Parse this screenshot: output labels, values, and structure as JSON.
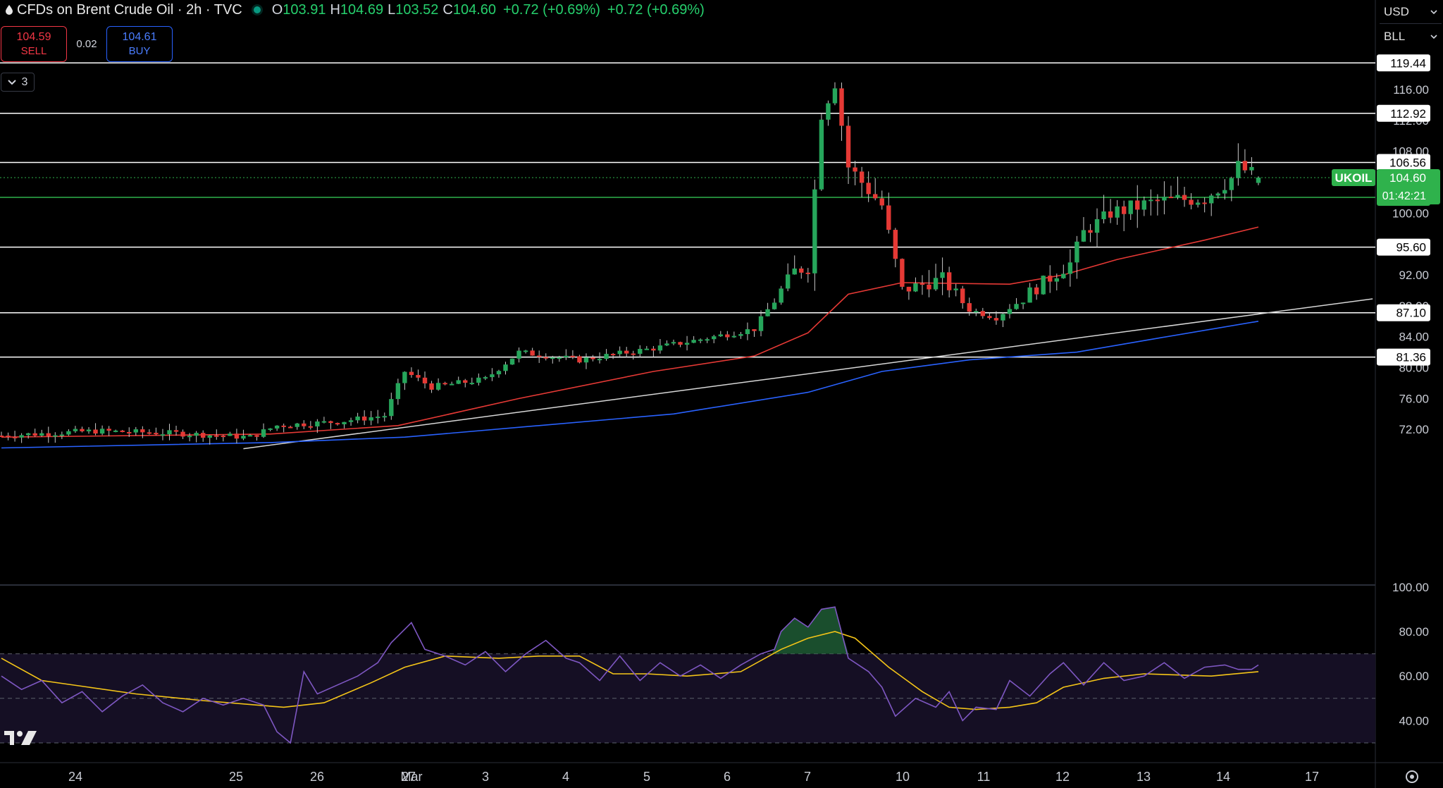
{
  "header": {
    "symbol_title": "CFDs on Brent Crude Oil · 2h · TVC",
    "open_label": "O",
    "open": "103.91",
    "high_label": "H",
    "high": "104.69",
    "low_label": "L",
    "low": "103.52",
    "close_label": "C",
    "close": "104.60",
    "change": "+0.72 (+0.69%)",
    "change_repeat": "+0.72 (+0.69%)"
  },
  "trade": {
    "sell_price": "104.59",
    "sell_label": "SELL",
    "spread": "0.02",
    "buy_price": "104.61",
    "buy_label": "BUY"
  },
  "collapse_count": "3",
  "scale_controls": {
    "currency": "USD",
    "unit": "BLL"
  },
  "colors": {
    "up": "#26a65b",
    "down": "#e53935",
    "ma_short": "#e53935",
    "ma_long": "#2962ff",
    "rsi": "#7e57c2",
    "rsi_ma": "#f5c518",
    "hline": "#ffffff",
    "last_price": "#2fb24c"
  },
  "chart_data": [
    {
      "type": "candlestick",
      "title": "CFDs on Brent Crude Oil · 2h · TVC",
      "x_ticks": [
        "24",
        "25",
        "26",
        "27",
        "Mar",
        "3",
        "4",
        "5",
        "6",
        "7",
        "10",
        "11",
        "12",
        "13",
        "14",
        "17"
      ],
      "y_ticks": [
        "72.00",
        "76.00",
        "80.00",
        "84.00",
        "88.00",
        "92.00",
        "96.00",
        "100.00",
        "104.00",
        "108.00",
        "112.00",
        "116.00"
      ],
      "ylim": [
        69.5,
        121.5
      ],
      "horizontal_levels": [
        119.44,
        112.92,
        106.56,
        102.04,
        95.6,
        87.1,
        81.36
      ],
      "level_labels": [
        "119.44",
        "112.92",
        "106.56",
        "102.04",
        "95.60",
        "87.10",
        "81.36"
      ],
      "last_price": {
        "symbol": "UKOIL",
        "price": "104.60",
        "countdown": "01:42:21"
      },
      "waypoints": [
        [
          0,
          71.2
        ],
        [
          14,
          71.8
        ],
        [
          26,
          71.5
        ],
        [
          37,
          71.0
        ],
        [
          41,
          72.5
        ],
        [
          50,
          73.0
        ],
        [
          57,
          73.8
        ],
        [
          60,
          79.5
        ],
        [
          64,
          77.5
        ],
        [
          72,
          78.5
        ],
        [
          77,
          82.0
        ],
        [
          86,
          81.0
        ],
        [
          97,
          82.5
        ],
        [
          112,
          85.0
        ],
        [
          118,
          92.5
        ],
        [
          120,
          93.0
        ],
        [
          122,
          113.0
        ],
        [
          124,
          117.0
        ],
        [
          126,
          106.0
        ],
        [
          131,
          101.0
        ],
        [
          134,
          90.0
        ],
        [
          140,
          91.5
        ],
        [
          144,
          87.5
        ],
        [
          148,
          86.5
        ],
        [
          155,
          91.0
        ],
        [
          159,
          93.5
        ],
        [
          161,
          97.5
        ],
        [
          165,
          100.0
        ],
        [
          172,
          101.5
        ],
        [
          179,
          102.0
        ],
        [
          183,
          104.5
        ],
        [
          184,
          106.0
        ],
        [
          187,
          104.6
        ]
      ],
      "ma_short": [
        [
          0,
          71.0
        ],
        [
          40,
          71.4
        ],
        [
          59,
          72.5
        ],
        [
          77,
          76.0
        ],
        [
          97,
          79.5
        ],
        [
          112,
          81.5
        ],
        [
          120,
          84.5
        ],
        [
          126,
          89.5
        ],
        [
          134,
          91.0
        ],
        [
          150,
          90.8
        ],
        [
          158,
          92.0
        ],
        [
          166,
          94.0
        ],
        [
          179,
          96.5
        ],
        [
          187,
          98.2
        ]
      ],
      "ma_long": [
        [
          0,
          69.6
        ],
        [
          40,
          70.3
        ],
        [
          60,
          71.0
        ],
        [
          80,
          72.5
        ],
        [
          100,
          74.0
        ],
        [
          120,
          76.8
        ],
        [
          131,
          79.5
        ],
        [
          144,
          81.0
        ],
        [
          160,
          82.0
        ],
        [
          172,
          83.8
        ],
        [
          187,
          86.0
        ]
      ],
      "trendline": [
        [
          36,
          69.5
        ],
        [
          204,
          88.9
        ]
      ]
    },
    {
      "type": "line",
      "title": "RSI",
      "y_ticks": [
        "40.00",
        "60.00",
        "80.00",
        "100.00"
      ],
      "ylim": [
        25,
        105
      ],
      "band": [
        30,
        70
      ],
      "midline": 50,
      "rsi": [
        [
          0,
          60
        ],
        [
          3,
          54
        ],
        [
          6,
          58
        ],
        [
          9,
          48
        ],
        [
          12,
          53
        ],
        [
          15,
          44
        ],
        [
          18,
          51
        ],
        [
          21,
          56
        ],
        [
          24,
          48
        ],
        [
          27,
          44
        ],
        [
          30,
          50
        ],
        [
          33,
          47
        ],
        [
          36,
          50
        ],
        [
          39,
          47
        ],
        [
          41,
          35
        ],
        [
          43,
          30
        ],
        [
          45,
          62
        ],
        [
          47,
          52
        ],
        [
          50,
          56
        ],
        [
          53,
          60
        ],
        [
          56,
          66
        ],
        [
          58,
          75
        ],
        [
          61,
          84
        ],
        [
          63,
          72
        ],
        [
          66,
          69
        ],
        [
          69,
          65
        ],
        [
          72,
          71
        ],
        [
          75,
          62
        ],
        [
          78,
          70
        ],
        [
          81,
          76
        ],
        [
          84,
          68
        ],
        [
          86,
          66
        ],
        [
          89,
          58
        ],
        [
          92,
          69
        ],
        [
          95,
          58
        ],
        [
          98,
          66
        ],
        [
          101,
          60
        ],
        [
          104,
          65
        ],
        [
          107,
          59
        ],
        [
          110,
          65
        ],
        [
          113,
          70
        ],
        [
          115,
          72
        ],
        [
          116,
          80
        ],
        [
          118,
          86
        ],
        [
          120,
          82
        ],
        [
          122,
          90
        ],
        [
          124,
          91
        ],
        [
          126,
          68
        ],
        [
          129,
          62
        ],
        [
          131,
          55
        ],
        [
          133,
          42
        ],
        [
          136,
          50
        ],
        [
          139,
          46
        ],
        [
          141,
          53
        ],
        [
          143,
          40
        ],
        [
          145,
          46
        ],
        [
          148,
          45
        ],
        [
          150,
          58
        ],
        [
          153,
          51
        ],
        [
          156,
          61
        ],
        [
          158,
          66
        ],
        [
          161,
          56
        ],
        [
          164,
          66
        ],
        [
          167,
          58
        ],
        [
          170,
          60
        ],
        [
          173,
          66
        ],
        [
          176,
          59
        ],
        [
          179,
          64
        ],
        [
          182,
          65
        ],
        [
          184,
          63
        ],
        [
          186,
          63
        ],
        [
          187,
          65
        ]
      ],
      "rsi_ma": [
        [
          0,
          68
        ],
        [
          6,
          58
        ],
        [
          13,
          55
        ],
        [
          20,
          52
        ],
        [
          30,
          49
        ],
        [
          38,
          47
        ],
        [
          42,
          46
        ],
        [
          48,
          48
        ],
        [
          55,
          57
        ],
        [
          60,
          64
        ],
        [
          66,
          69
        ],
        [
          74,
          68
        ],
        [
          80,
          69
        ],
        [
          86,
          69
        ],
        [
          91,
          61
        ],
        [
          96,
          61
        ],
        [
          102,
          60
        ],
        [
          110,
          62
        ],
        [
          116,
          72
        ],
        [
          120,
          77
        ],
        [
          124,
          80
        ],
        [
          127,
          77
        ],
        [
          132,
          64
        ],
        [
          137,
          53
        ],
        [
          141,
          46
        ],
        [
          145,
          45
        ],
        [
          150,
          46
        ],
        [
          154,
          48
        ],
        [
          158,
          55
        ],
        [
          164,
          59
        ],
        [
          170,
          61
        ],
        [
          180,
          60
        ],
        [
          187,
          62
        ]
      ]
    }
  ]
}
